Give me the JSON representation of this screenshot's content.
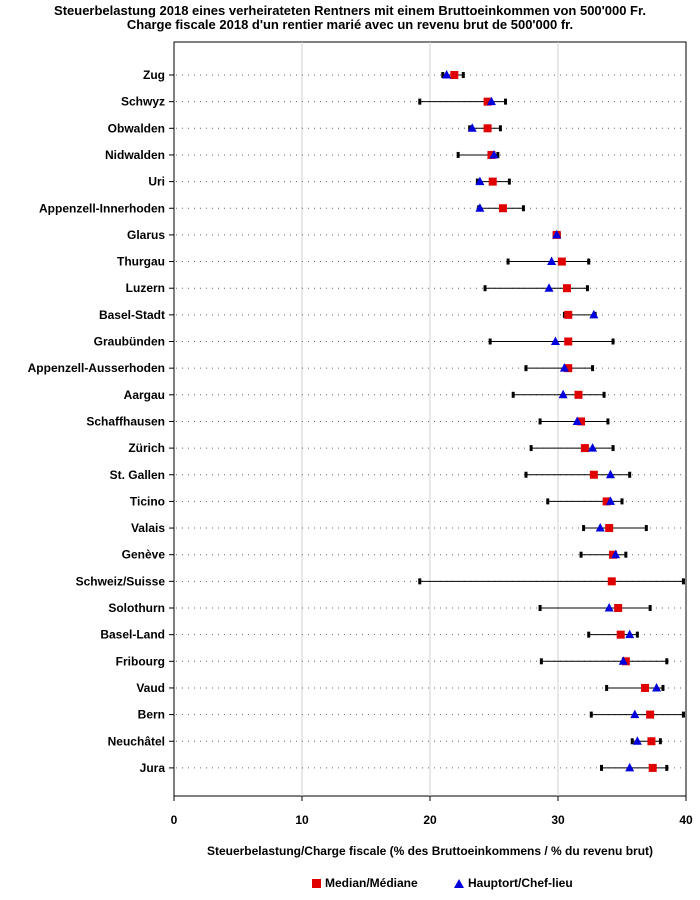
{
  "chart_data": {
    "type": "scatter",
    "title": "Steuerbelastung 2018 eines verheirateten Rentners mit einem Bruttoeinkommen von 500'000 Fr.",
    "subtitle": "Charge fiscale 2018 d'un rentier marié avec un revenu brut de 500'000 fr.",
    "xlabel": "Steuerbelastung/Charge fiscale (% des Bruttoeinkommens / % du revenu brut)",
    "ylabel": "",
    "xlim": [
      0,
      40
    ],
    "xticks": [
      0,
      10,
      20,
      30,
      40
    ],
    "grid": "vertical",
    "legend_position": "bottom",
    "legend": [
      {
        "name": "Median/Médiane",
        "marker": "square",
        "color": "#e00000"
      },
      {
        "name": "Hauptort/Chef-lieu",
        "marker": "triangle",
        "color": "#0000dd"
      }
    ],
    "rows": [
      {
        "label": "Zug",
        "min": 21.0,
        "max": 22.6,
        "median": 21.9,
        "capital": 21.3
      },
      {
        "label": "Schwyz",
        "min": 19.2,
        "max": 25.9,
        "median": 24.5,
        "capital": 24.8
      },
      {
        "label": "Obwalden",
        "min": 23.1,
        "max": 25.5,
        "median": 24.5,
        "capital": 23.3
      },
      {
        "label": "Nidwalden",
        "min": 22.2,
        "max": 25.3,
        "median": 24.8,
        "capital": 25.0
      },
      {
        "label": "Uri",
        "min": 23.7,
        "max": 26.2,
        "median": 24.9,
        "capital": 23.9
      },
      {
        "label": "Appenzell-Innerhoden",
        "min": 23.8,
        "max": 27.3,
        "median": 25.7,
        "capital": 23.9
      },
      {
        "label": "Glarus",
        "min": 29.7,
        "max": 30.1,
        "median": 29.9,
        "capital": 29.9
      },
      {
        "label": "Thurgau",
        "min": 26.1,
        "max": 32.4,
        "median": 30.3,
        "capital": 29.5
      },
      {
        "label": "Luzern",
        "min": 24.3,
        "max": 32.3,
        "median": 30.7,
        "capital": 29.3
      },
      {
        "label": "Basel-Stadt",
        "min": 30.5,
        "max": 32.9,
        "median": 30.8,
        "capital": 32.8
      },
      {
        "label": "Graubünden",
        "min": 24.7,
        "max": 34.3,
        "median": 30.8,
        "capital": 29.8
      },
      {
        "label": "Appenzell-Ausserhoden",
        "min": 27.5,
        "max": 32.7,
        "median": 30.8,
        "capital": 30.5
      },
      {
        "label": "Aargau",
        "min": 26.5,
        "max": 33.6,
        "median": 31.6,
        "capital": 30.4
      },
      {
        "label": "Schaffhausen",
        "min": 28.6,
        "max": 33.9,
        "median": 31.8,
        "capital": 31.5
      },
      {
        "label": "Zürich",
        "min": 27.9,
        "max": 34.3,
        "median": 32.1,
        "capital": 32.7
      },
      {
        "label": "St. Gallen",
        "min": 27.5,
        "max": 35.6,
        "median": 32.8,
        "capital": 34.1
      },
      {
        "label": "Ticino",
        "min": 29.2,
        "max": 35.0,
        "median": 33.8,
        "capital": 34.1
      },
      {
        "label": "Valais",
        "min": 32.0,
        "max": 36.9,
        "median": 34.0,
        "capital": 33.3
      },
      {
        "label": "Genève",
        "min": 31.8,
        "max": 35.3,
        "median": 34.3,
        "capital": 34.5
      },
      {
        "label": "Schweiz/Suisse",
        "min": 19.2,
        "max": 39.8,
        "median": 34.2,
        "capital": null
      },
      {
        "label": "Solothurn",
        "min": 28.6,
        "max": 37.2,
        "median": 34.7,
        "capital": 34.0
      },
      {
        "label": "Basel-Land",
        "min": 32.4,
        "max": 36.2,
        "median": 34.9,
        "capital": 35.6
      },
      {
        "label": "Fribourg",
        "min": 28.7,
        "max": 38.5,
        "median": 35.3,
        "capital": 35.1
      },
      {
        "label": "Vaud",
        "min": 33.8,
        "max": 38.2,
        "median": 36.8,
        "capital": 37.7
      },
      {
        "label": "Bern",
        "min": 32.6,
        "max": 39.8,
        "median": 37.2,
        "capital": 36.0
      },
      {
        "label": "Neuchâtel",
        "min": 35.8,
        "max": 38.0,
        "median": 37.3,
        "capital": 36.2
      },
      {
        "label": "Jura",
        "min": 33.4,
        "max": 38.5,
        "median": 37.4,
        "capital": 35.6
      }
    ]
  }
}
